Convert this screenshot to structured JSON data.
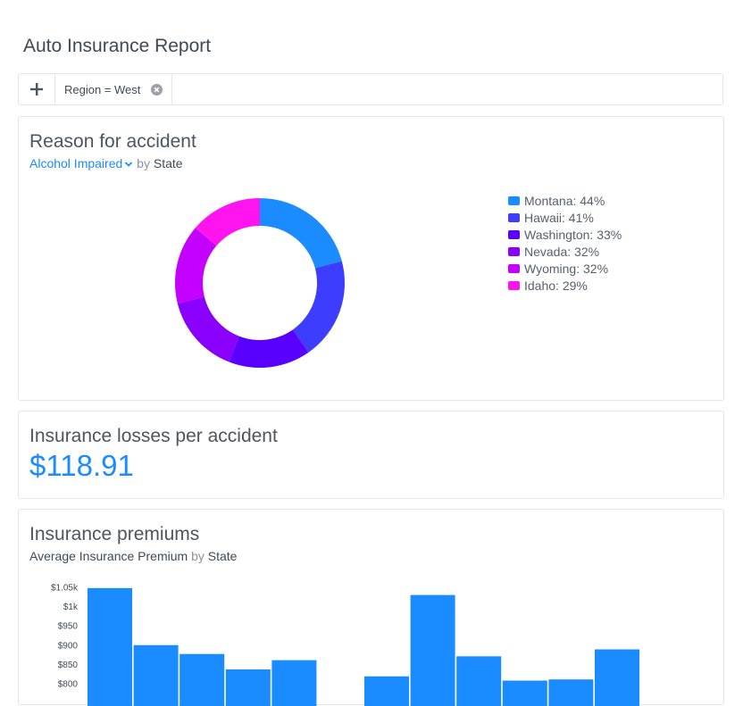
{
  "page": {
    "title": "Auto Insurance Report"
  },
  "filter_bar": {
    "add_icon": "plus-icon",
    "chips": [
      {
        "label": "Region = West",
        "remove_icon": "close-circle-icon"
      }
    ]
  },
  "colors": {
    "accent": "#1a8cff"
  },
  "reason_card": {
    "title": "Reason for accident",
    "measure_label": "Alcohol Impaired",
    "by_word": "by",
    "dimension": "State"
  },
  "losses_card": {
    "title": "Insurance losses per accident",
    "value": "$118.91"
  },
  "premiums_card": {
    "title": "Insurance premiums",
    "measure_label": "Average Insurance Premium",
    "by_word": "by",
    "dimension": "State"
  },
  "chart_data": [
    {
      "type": "pie",
      "donut": true,
      "categories": [
        "Montana",
        "Hawaii",
        "Washington",
        "Nevada",
        "Wyoming",
        "Idaho"
      ],
      "values": [
        44,
        41,
        33,
        32,
        32,
        29
      ],
      "legend_labels": [
        "Montana: 44%",
        "Hawaii: 41%",
        "Washington: 33%",
        "Nevada: 32%",
        "Wyoming: 32%",
        "Idaho: 29%"
      ],
      "colors": [
        "#1a8cff",
        "#3d3dff",
        "#5a00ff",
        "#8a00ff",
        "#c400ff",
        "#ff14f0"
      ],
      "legend_position": "right"
    },
    {
      "type": "bar",
      "ylabel": "",
      "yticks": [
        "$800",
        "$850",
        "$900",
        "$950",
        "$1k",
        "$1.05k"
      ],
      "ytick_values": [
        800,
        850,
        900,
        950,
        1000,
        1050
      ],
      "ylim": [
        800,
        1050
      ],
      "groups": [
        {
          "values": [
            1048,
            900,
            877,
            837,
            861
          ]
        },
        {
          "values": [
            819,
            1030,
            871,
            808,
            811,
            889
          ]
        }
      ],
      "color": "#1a8cff",
      "grid": false
    }
  ]
}
